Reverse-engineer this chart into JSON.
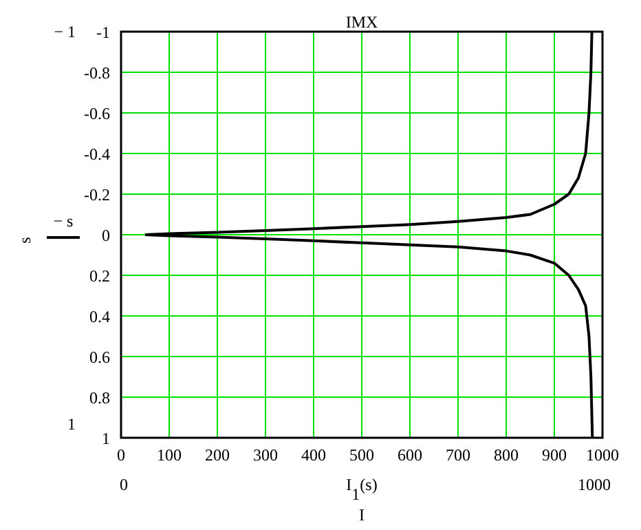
{
  "chart_data": {
    "type": "line",
    "title": "IMX",
    "xlabel": "I$_{1}$(s)",
    "ylabel": "s",
    "annotations": [
      "− 1",
      "1",
      "0",
      "1000",
      "I"
    ],
    "series": [
      {
        "color": "#000000",
        "x": [
          50,
          100,
          200,
          300,
          400,
          500,
          600,
          700,
          800,
          850,
          900,
          930,
          950,
          965,
          972,
          976,
          978
        ],
        "values": [
          0,
          -0.005,
          -0.012,
          -0.02,
          -0.03,
          -0.04,
          -0.05,
          -0.065,
          -0.085,
          -0.1,
          -0.15,
          -0.2,
          -0.28,
          -0.4,
          -0.6,
          -0.8,
          -1
        ]
      },
      {
        "name": "− s",
        "color": "#000000",
        "x": [
          50,
          100,
          200,
          300,
          400,
          500,
          600,
          700,
          800,
          850,
          900,
          930,
          950,
          965,
          972,
          976,
          979
        ],
        "values": [
          0,
          0.005,
          0.012,
          0.02,
          0.03,
          0.04,
          0.05,
          0.06,
          0.08,
          0.1,
          0.14,
          0.2,
          0.27,
          0.35,
          0.5,
          0.7,
          1
        ]
      }
    ],
    "xlim": [
      0,
      1000
    ],
    "xticks": [
      0,
      100,
      200,
      300,
      400,
      500,
      600,
      700,
      800,
      900,
      1000
    ],
    "ylim": [
      1,
      -1
    ],
    "yticks": [
      -1,
      -0.8,
      -0.6,
      -0.4,
      -0.2,
      0,
      0.2,
      0.4,
      0.6,
      0.8,
      1
    ],
    "grid": true,
    "legend": "left",
    "marker": "none",
    "line_style": "solid"
  }
}
